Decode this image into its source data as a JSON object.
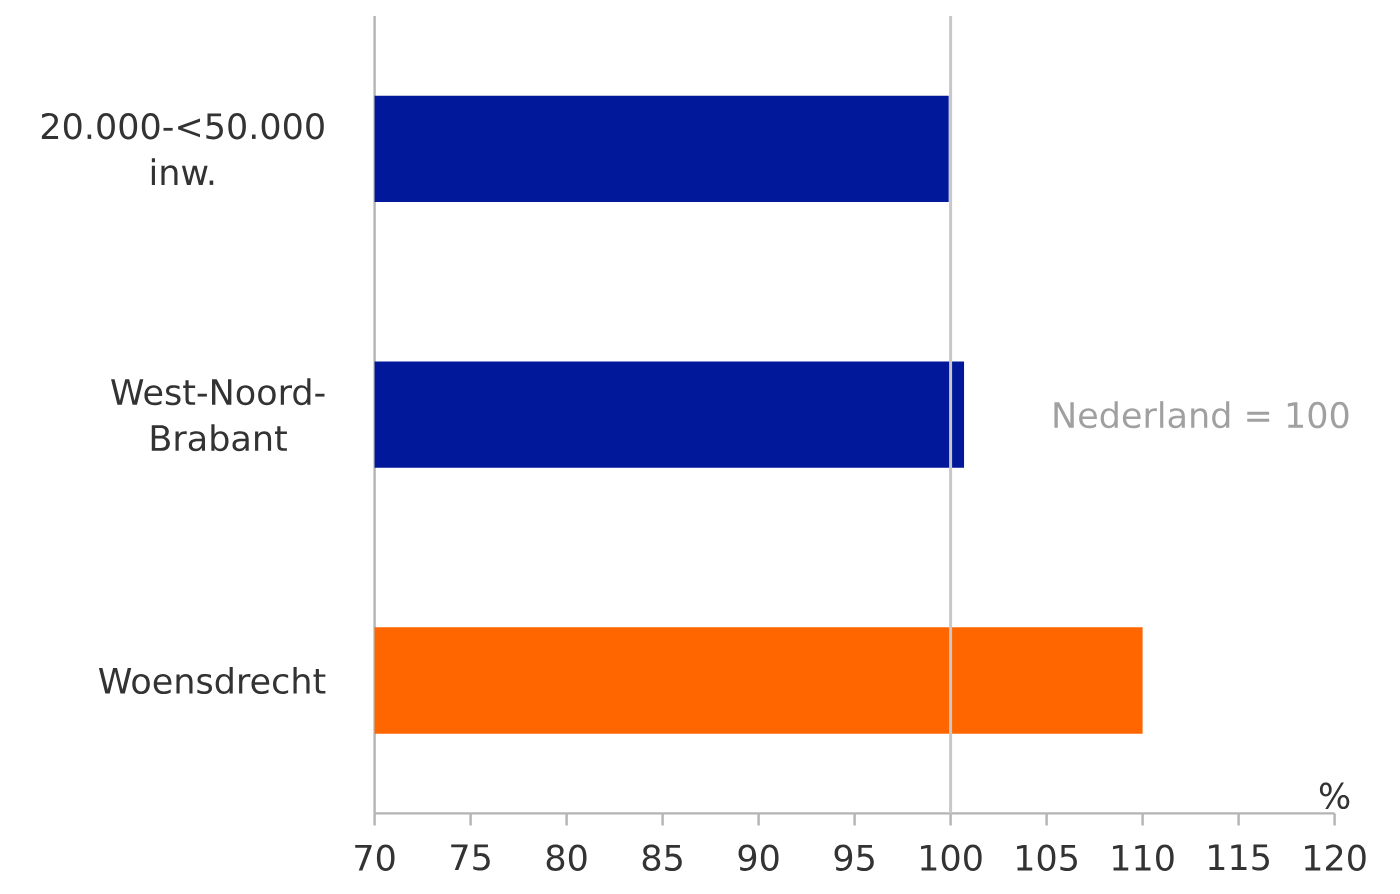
{
  "chart_data": {
    "type": "bar",
    "orientation": "horizontal",
    "categories": [
      "20.000-<50.000 inw.",
      "West-Noord-Brabant",
      "Woensdrecht"
    ],
    "values": [
      99.9,
      100.7,
      110
    ],
    "colors": [
      "#001899",
      "#001899",
      "#ff6600"
    ],
    "xlabel": "%",
    "xlim": [
      70,
      120
    ],
    "xticks": [
      70,
      75,
      80,
      85,
      90,
      95,
      100,
      105,
      110,
      115,
      120
    ],
    "ref_lines": [
      {
        "axis": "x",
        "value": 100,
        "label": "Nederland = 100",
        "color": "#c8c8c8"
      }
    ]
  }
}
